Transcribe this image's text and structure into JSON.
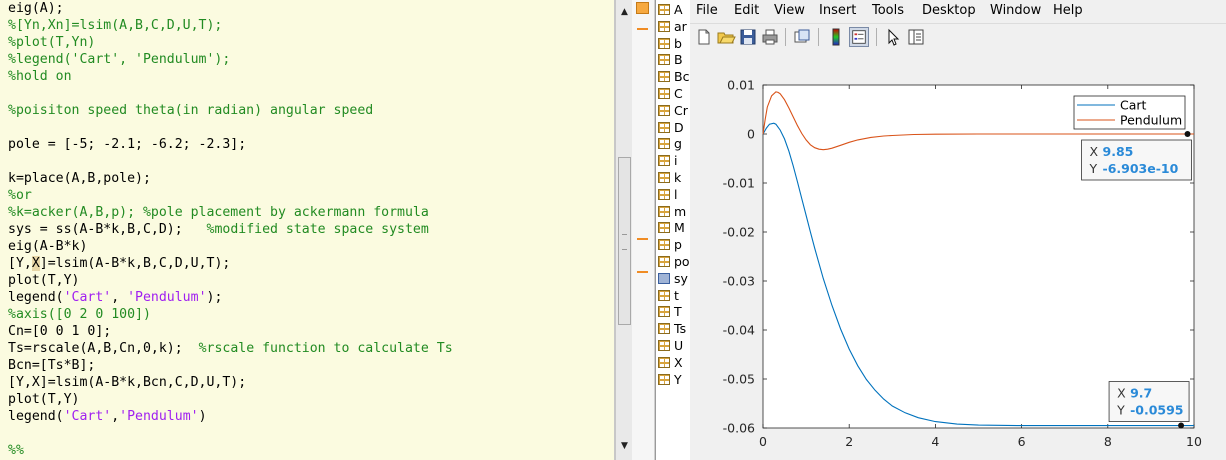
{
  "editor": {
    "lines": [
      [
        {
          "t": "eig(A);",
          "c": ""
        }
      ],
      [
        {
          "t": "%[Yn,Xn]=lsim(A,B,C,D,U,T);",
          "c": "cm"
        }
      ],
      [
        {
          "t": "%plot(T,Yn)",
          "c": "cm"
        }
      ],
      [
        {
          "t": "%legend('Cart', 'Pendulum');",
          "c": "cm"
        }
      ],
      [
        {
          "t": "%hold on",
          "c": "cm"
        }
      ],
      [
        {
          "t": "",
          "c": ""
        }
      ],
      [
        {
          "t": "%poisiton speed theta(in radian) angular speed",
          "c": "cm"
        }
      ],
      [
        {
          "t": "",
          "c": ""
        }
      ],
      [
        {
          "t": "pole = [-5; -2.1; -6.2; -2.3];",
          "c": ""
        }
      ],
      [
        {
          "t": "",
          "c": ""
        }
      ],
      [
        {
          "t": "k=place(A,B,pole);",
          "c": ""
        }
      ],
      [
        {
          "t": "%or",
          "c": "cm"
        }
      ],
      [
        {
          "t": "%k=acker(A,B,p); %pole placement by ackermann formula",
          "c": "cm"
        }
      ],
      [
        {
          "t": "sys = ss(A-B*k,B,C,D);   ",
          "c": ""
        },
        {
          "t": "%modified state space system",
          "c": "cm"
        }
      ],
      [
        {
          "t": "eig(A-B*k)",
          "c": ""
        }
      ],
      [
        {
          "t": "[Y,",
          "c": ""
        },
        {
          "t": "X",
          "c": "hl"
        },
        {
          "t": "]=lsim(A-B*k,B,C,D,U,T);",
          "c": ""
        }
      ],
      [
        {
          "t": "plot(T,Y)",
          "c": ""
        }
      ],
      [
        {
          "t": "legend(",
          "c": ""
        },
        {
          "t": "'Cart'",
          "c": "str"
        },
        {
          "t": ", ",
          "c": ""
        },
        {
          "t": "'Pendulum'",
          "c": "str"
        },
        {
          "t": ");",
          "c": ""
        }
      ],
      [
        {
          "t": "%axis([0 2 0 100])",
          "c": "cm"
        }
      ],
      [
        {
          "t": "Cn=[0 0 1 0];",
          "c": ""
        }
      ],
      [
        {
          "t": "Ts=rscale(A,B,Cn,0,k);  ",
          "c": ""
        },
        {
          "t": "%rscale function to calculate Ts",
          "c": "cm"
        }
      ],
      [
        {
          "t": "Bcn=[Ts*B];",
          "c": ""
        }
      ],
      [
        {
          "t": "[Y,X]=lsim(A-B*k,Bcn,C,D,U,T);",
          "c": ""
        }
      ],
      [
        {
          "t": "plot(T,Y)",
          "c": ""
        }
      ],
      [
        {
          "t": "legend(",
          "c": ""
        },
        {
          "t": "'Cart'",
          "c": "str"
        },
        {
          "t": ",",
          "c": ""
        },
        {
          "t": "'Pendulum'",
          "c": "str"
        },
        {
          "t": ")",
          "c": ""
        }
      ],
      [
        {
          "t": "",
          "c": ""
        }
      ],
      [
        {
          "t": "%%",
          "c": "cm"
        }
      ]
    ]
  },
  "workspace": {
    "items": [
      {
        "label": "A",
        "icon": "grid"
      },
      {
        "label": "ar",
        "icon": "grid"
      },
      {
        "label": "b",
        "icon": "grid"
      },
      {
        "label": "B",
        "icon": "grid"
      },
      {
        "label": "Bc",
        "icon": "grid"
      },
      {
        "label": "C",
        "icon": "grid"
      },
      {
        "label": "Cr",
        "icon": "grid"
      },
      {
        "label": "D",
        "icon": "grid"
      },
      {
        "label": "g",
        "icon": "grid"
      },
      {
        "label": "i",
        "icon": "grid"
      },
      {
        "label": "k",
        "icon": "grid"
      },
      {
        "label": "l",
        "icon": "grid"
      },
      {
        "label": "m",
        "icon": "grid"
      },
      {
        "label": "M",
        "icon": "grid"
      },
      {
        "label": "p",
        "icon": "grid"
      },
      {
        "label": "po",
        "icon": "grid"
      },
      {
        "label": "sy",
        "icon": "cube"
      },
      {
        "label": "t",
        "icon": "grid"
      },
      {
        "label": "T",
        "icon": "grid"
      },
      {
        "label": "Ts",
        "icon": "grid"
      },
      {
        "label": "U",
        "icon": "grid"
      },
      {
        "label": "X",
        "icon": "grid"
      },
      {
        "label": "Y",
        "icon": "grid"
      }
    ]
  },
  "figure": {
    "menu": [
      "File",
      "Edit",
      "View",
      "Insert",
      "Tools",
      "Desktop",
      "Window",
      "Help"
    ],
    "toolbar": [
      "new-figure-icon",
      "open-file-icon",
      "save-icon",
      "print-icon",
      "link-plot-icon",
      "insert-colorbar-icon",
      "insert-legend-icon",
      "edit-plot-arrow-icon",
      "property-inspector-icon"
    ]
  },
  "chart_data": {
    "type": "line",
    "xlim": [
      0,
      10
    ],
    "ylim": [
      -0.06,
      0.01
    ],
    "xticks": [
      "0",
      "2",
      "4",
      "6",
      "8",
      "10"
    ],
    "yticks": [
      "0.01",
      "0",
      "-0.01",
      "-0.02",
      "-0.03",
      "-0.04",
      "-0.05",
      "-0.06"
    ],
    "grid": false,
    "legend_position": "top-right",
    "series": [
      {
        "name": "Cart",
        "color": "#0072bd",
        "x": [
          0,
          0.08,
          0.15,
          0.25,
          0.3,
          0.4,
          0.5,
          0.6,
          0.7,
          0.8,
          0.9,
          1.0,
          1.1,
          1.2,
          1.4,
          1.6,
          1.8,
          2.0,
          2.2,
          2.4,
          2.6,
          2.8,
          3.0,
          3.3,
          3.6,
          4.0,
          4.5,
          5,
          6,
          7,
          8,
          9,
          10
        ],
        "y": [
          0,
          0.0012,
          0.002,
          0.0022,
          0.002,
          0.0008,
          -0.001,
          -0.0035,
          -0.0065,
          -0.0098,
          -0.0132,
          -0.0166,
          -0.02,
          -0.0233,
          -0.0295,
          -0.035,
          -0.0398,
          -0.0439,
          -0.0473,
          -0.0501,
          -0.0523,
          -0.0541,
          -0.0555,
          -0.0569,
          -0.0579,
          -0.0587,
          -0.0592,
          -0.0594,
          -0.0595,
          -0.0595,
          -0.0595,
          -0.0595,
          -0.0595
        ]
      },
      {
        "name": "Pendulum",
        "color": "#d95319",
        "x": [
          0,
          0.05,
          0.1,
          0.2,
          0.3,
          0.35,
          0.4,
          0.5,
          0.6,
          0.7,
          0.8,
          0.9,
          1.0,
          1.1,
          1.2,
          1.3,
          1.4,
          1.5,
          1.6,
          1.8,
          2.0,
          2.2,
          2.5,
          2.8,
          3.0,
          3.5,
          4.0,
          5,
          6,
          7,
          8,
          9,
          10
        ],
        "y": [
          0,
          0.003,
          0.0055,
          0.0078,
          0.0086,
          0.0085,
          0.0082,
          0.007,
          0.0053,
          0.0035,
          0.0017,
          0.0001,
          -0.0012,
          -0.0022,
          -0.0028,
          -0.0031,
          -0.0032,
          -0.0031,
          -0.0029,
          -0.0023,
          -0.0017,
          -0.0012,
          -0.0007,
          -0.0004,
          -0.0003,
          -0.0001,
          -5e-05,
          0,
          0,
          0,
          0,
          0,
          0
        ]
      }
    ],
    "datatips": [
      {
        "x": "9.85",
        "y": "-6.903e-10",
        "px": 9.85,
        "py": 0,
        "side": "below-left"
      },
      {
        "x": "9.7",
        "y": "-0.0595",
        "px": 9.7,
        "py": -0.0595,
        "side": "above-left"
      }
    ]
  }
}
